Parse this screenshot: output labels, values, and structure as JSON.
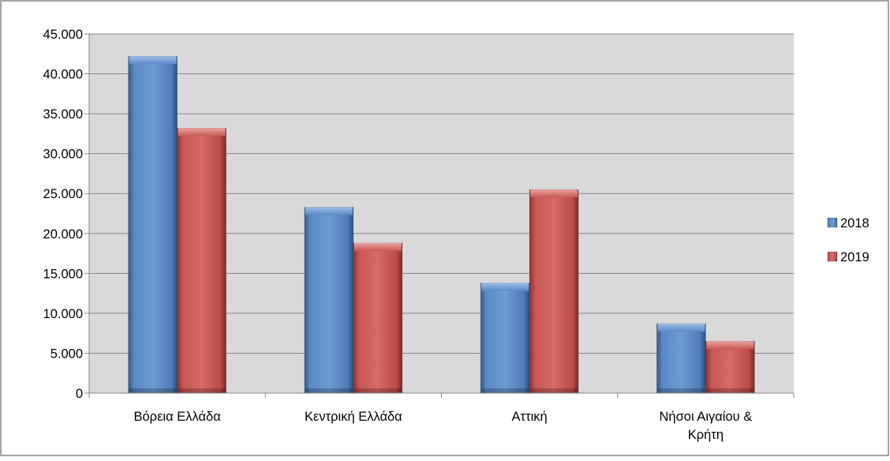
{
  "chart_data": {
    "type": "bar",
    "categories": [
      "Βόρεια Ελλάδα",
      "Κεντρική Ελλάδα",
      "Αττική",
      "Νήσοι Αιγαίου & Κρήτη"
    ],
    "category_lines": [
      [
        "Βόρεια Ελλάδα"
      ],
      [
        "Κεντρική Ελλάδα"
      ],
      [
        "Αττική"
      ],
      [
        "Νήσοι Αιγαίου &",
        "Κρήτη"
      ]
    ],
    "series": [
      {
        "name": "2018",
        "values": [
          42200,
          23300,
          13800,
          8700
        ],
        "color": "#4f81bd"
      },
      {
        "name": "2019",
        "values": [
          33200,
          18800,
          25500,
          6500
        ],
        "color": "#c0504d"
      }
    ],
    "y_ticks": [
      "0",
      "5.000",
      "10.000",
      "15.000",
      "20.000",
      "25.000",
      "30.000",
      "35.000",
      "40.000",
      "45.000"
    ],
    "ylim": [
      0,
      45000
    ],
    "grid": true,
    "legend_position": "right",
    "plot_background": "#d9d9d9",
    "title": "",
    "xlabel": "",
    "ylabel": ""
  }
}
